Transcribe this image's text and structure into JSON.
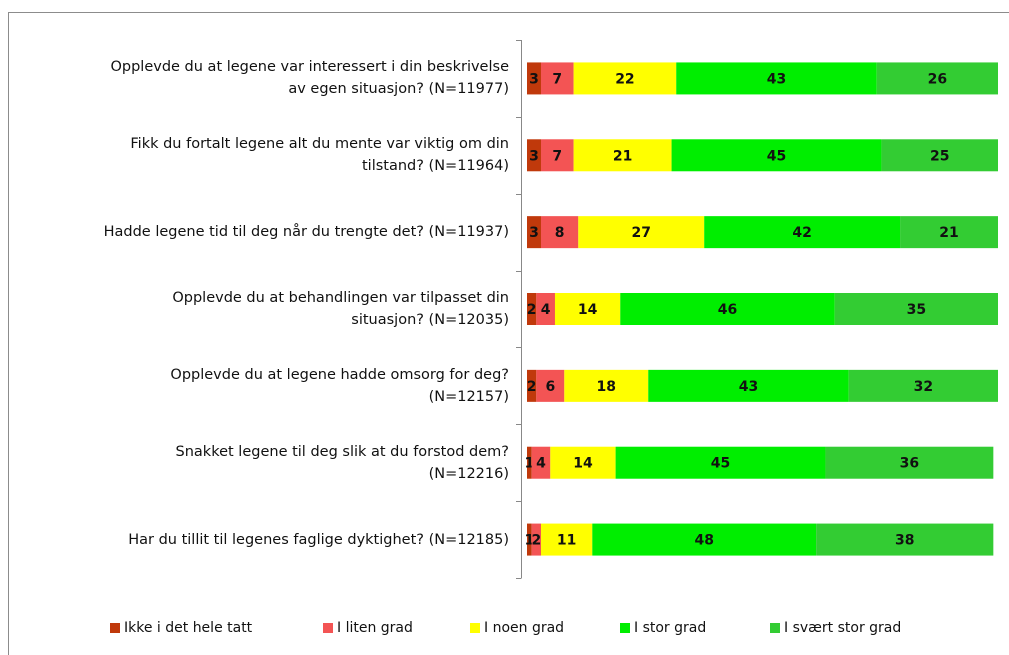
{
  "chart_data": {
    "type": "stacked-bar-horizontal",
    "categories": [
      "Opplevde du at legene var interessert i din beskrivelse\nav egen situasjon? (N=11977)",
      "Fikk du fortalt legene alt du mente var viktig om din\ntilstand? (N=11964)",
      "Hadde legene tid til deg når du trengte det? (N=11937)",
      "Opplevde du at behandlingen var tilpasset din\nsituasjon? (N=12035)",
      "Opplevde du at legene hadde omsorg for deg?\n(N=12157)",
      "Snakket legene til deg slik at du forstod dem?\n(N=12216)",
      "Har du tillit til legenes faglige dyktighet? (N=12185)"
    ],
    "series": [
      {
        "name": "Ikke i det hele tatt",
        "color": "#c0390b",
        "values": [
          3,
          3,
          3,
          2,
          2,
          1,
          1
        ]
      },
      {
        "name": "I liten grad",
        "color": "#f35454",
        "values": [
          7,
          7,
          8,
          4,
          6,
          4,
          2
        ]
      },
      {
        "name": "I noen grad",
        "color": "#ffff00",
        "values": [
          22,
          21,
          27,
          14,
          18,
          14,
          11
        ]
      },
      {
        "name": "I stor grad",
        "color": "#00ee00",
        "values": [
          43,
          45,
          42,
          46,
          43,
          45,
          48
        ]
      },
      {
        "name": "I svært stor grad",
        "color": "#33cc33",
        "values": [
          26,
          25,
          21,
          35,
          32,
          36,
          38
        ]
      }
    ],
    "legend": "bottom"
  }
}
